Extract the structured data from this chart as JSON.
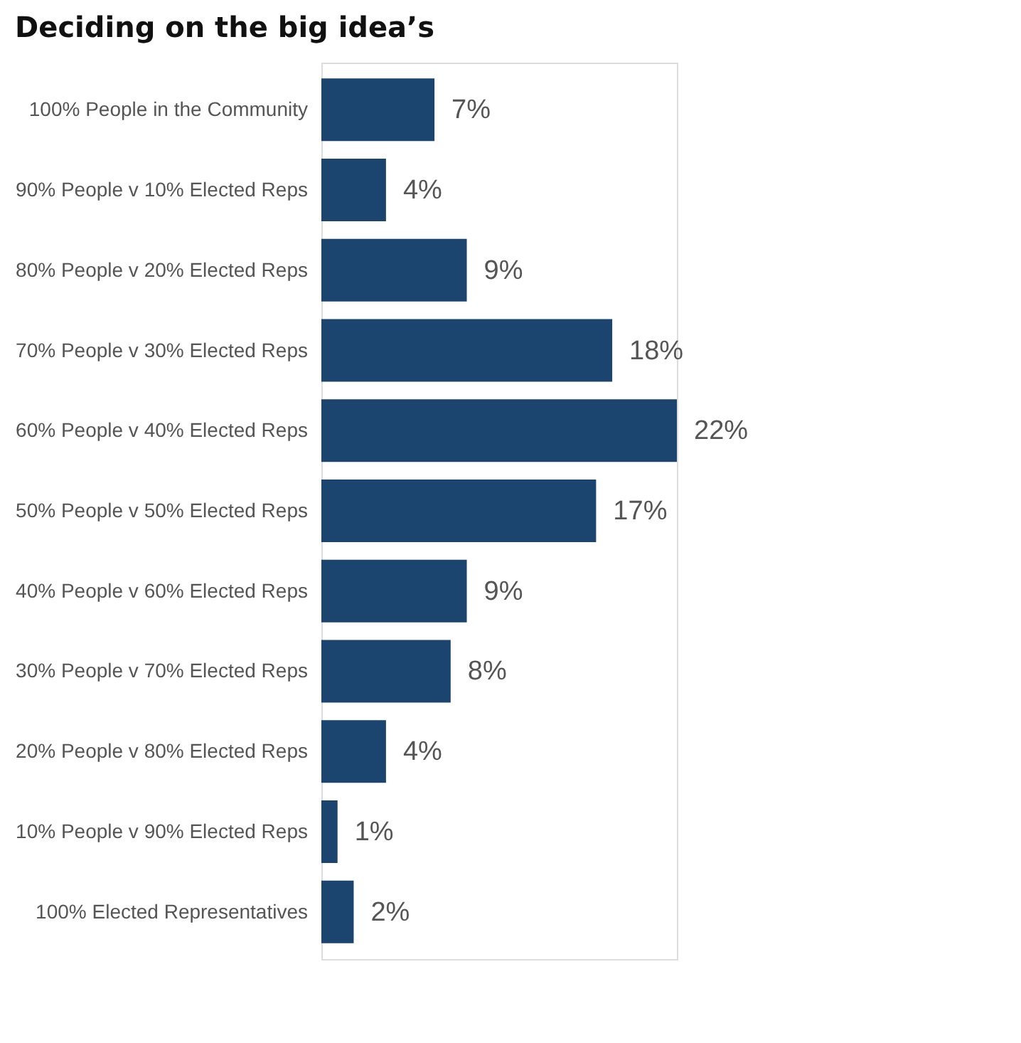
{
  "chart_data": {
    "type": "bar",
    "orientation": "horizontal",
    "title": "Deciding on the big idea’s",
    "categories": [
      "100% People in the Community",
      "90% People v 10% Elected Reps",
      "80% People v 20% Elected Reps",
      "70% People v 30% Elected Reps",
      "60% People v 40% Elected Reps",
      "50% People v 50% Elected Reps",
      "40% People v 60% Elected Reps",
      "30% People v 70% Elected Reps",
      "20% People v 80% Elected Reps",
      "10% People v 90% Elected Reps",
      "100% Elected Representatives"
    ],
    "values": [
      7,
      4,
      9,
      18,
      22,
      17,
      9,
      8,
      4,
      1,
      2
    ],
    "value_labels": [
      "7%",
      "4%",
      "9%",
      "18%",
      "22%",
      "17%",
      "9%",
      "8%",
      "4%",
      "1%",
      "2%"
    ],
    "color": "#1b456e",
    "grid": false
  }
}
